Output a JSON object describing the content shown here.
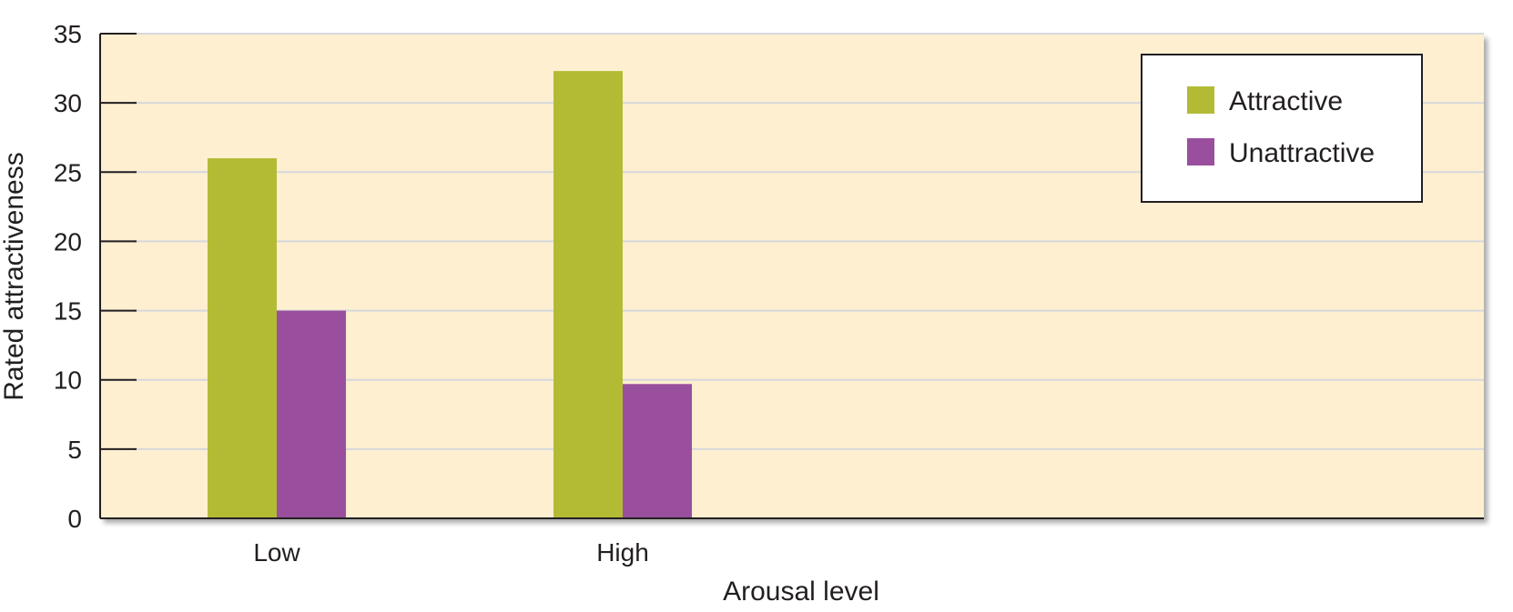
{
  "chart_data": {
    "type": "bar",
    "title": "",
    "xlabel": "Arousal level",
    "ylabel": "Rated attractiveness",
    "categories": [
      "Low",
      "High"
    ],
    "series": [
      {
        "name": "Attractive",
        "values": [
          26,
          32.3
        ],
        "color": "#b3bb35"
      },
      {
        "name": "Unattractive",
        "values": [
          15,
          9.7
        ],
        "color": "#9a4f9e"
      }
    ],
    "ylim": [
      0,
      35
    ],
    "yticks": [
      0,
      5,
      10,
      15,
      20,
      25,
      30,
      35
    ],
    "grid": true,
    "legend_position": "top-right",
    "plot_background": "#fdefd0",
    "grid_color": "#d7d7dc"
  }
}
